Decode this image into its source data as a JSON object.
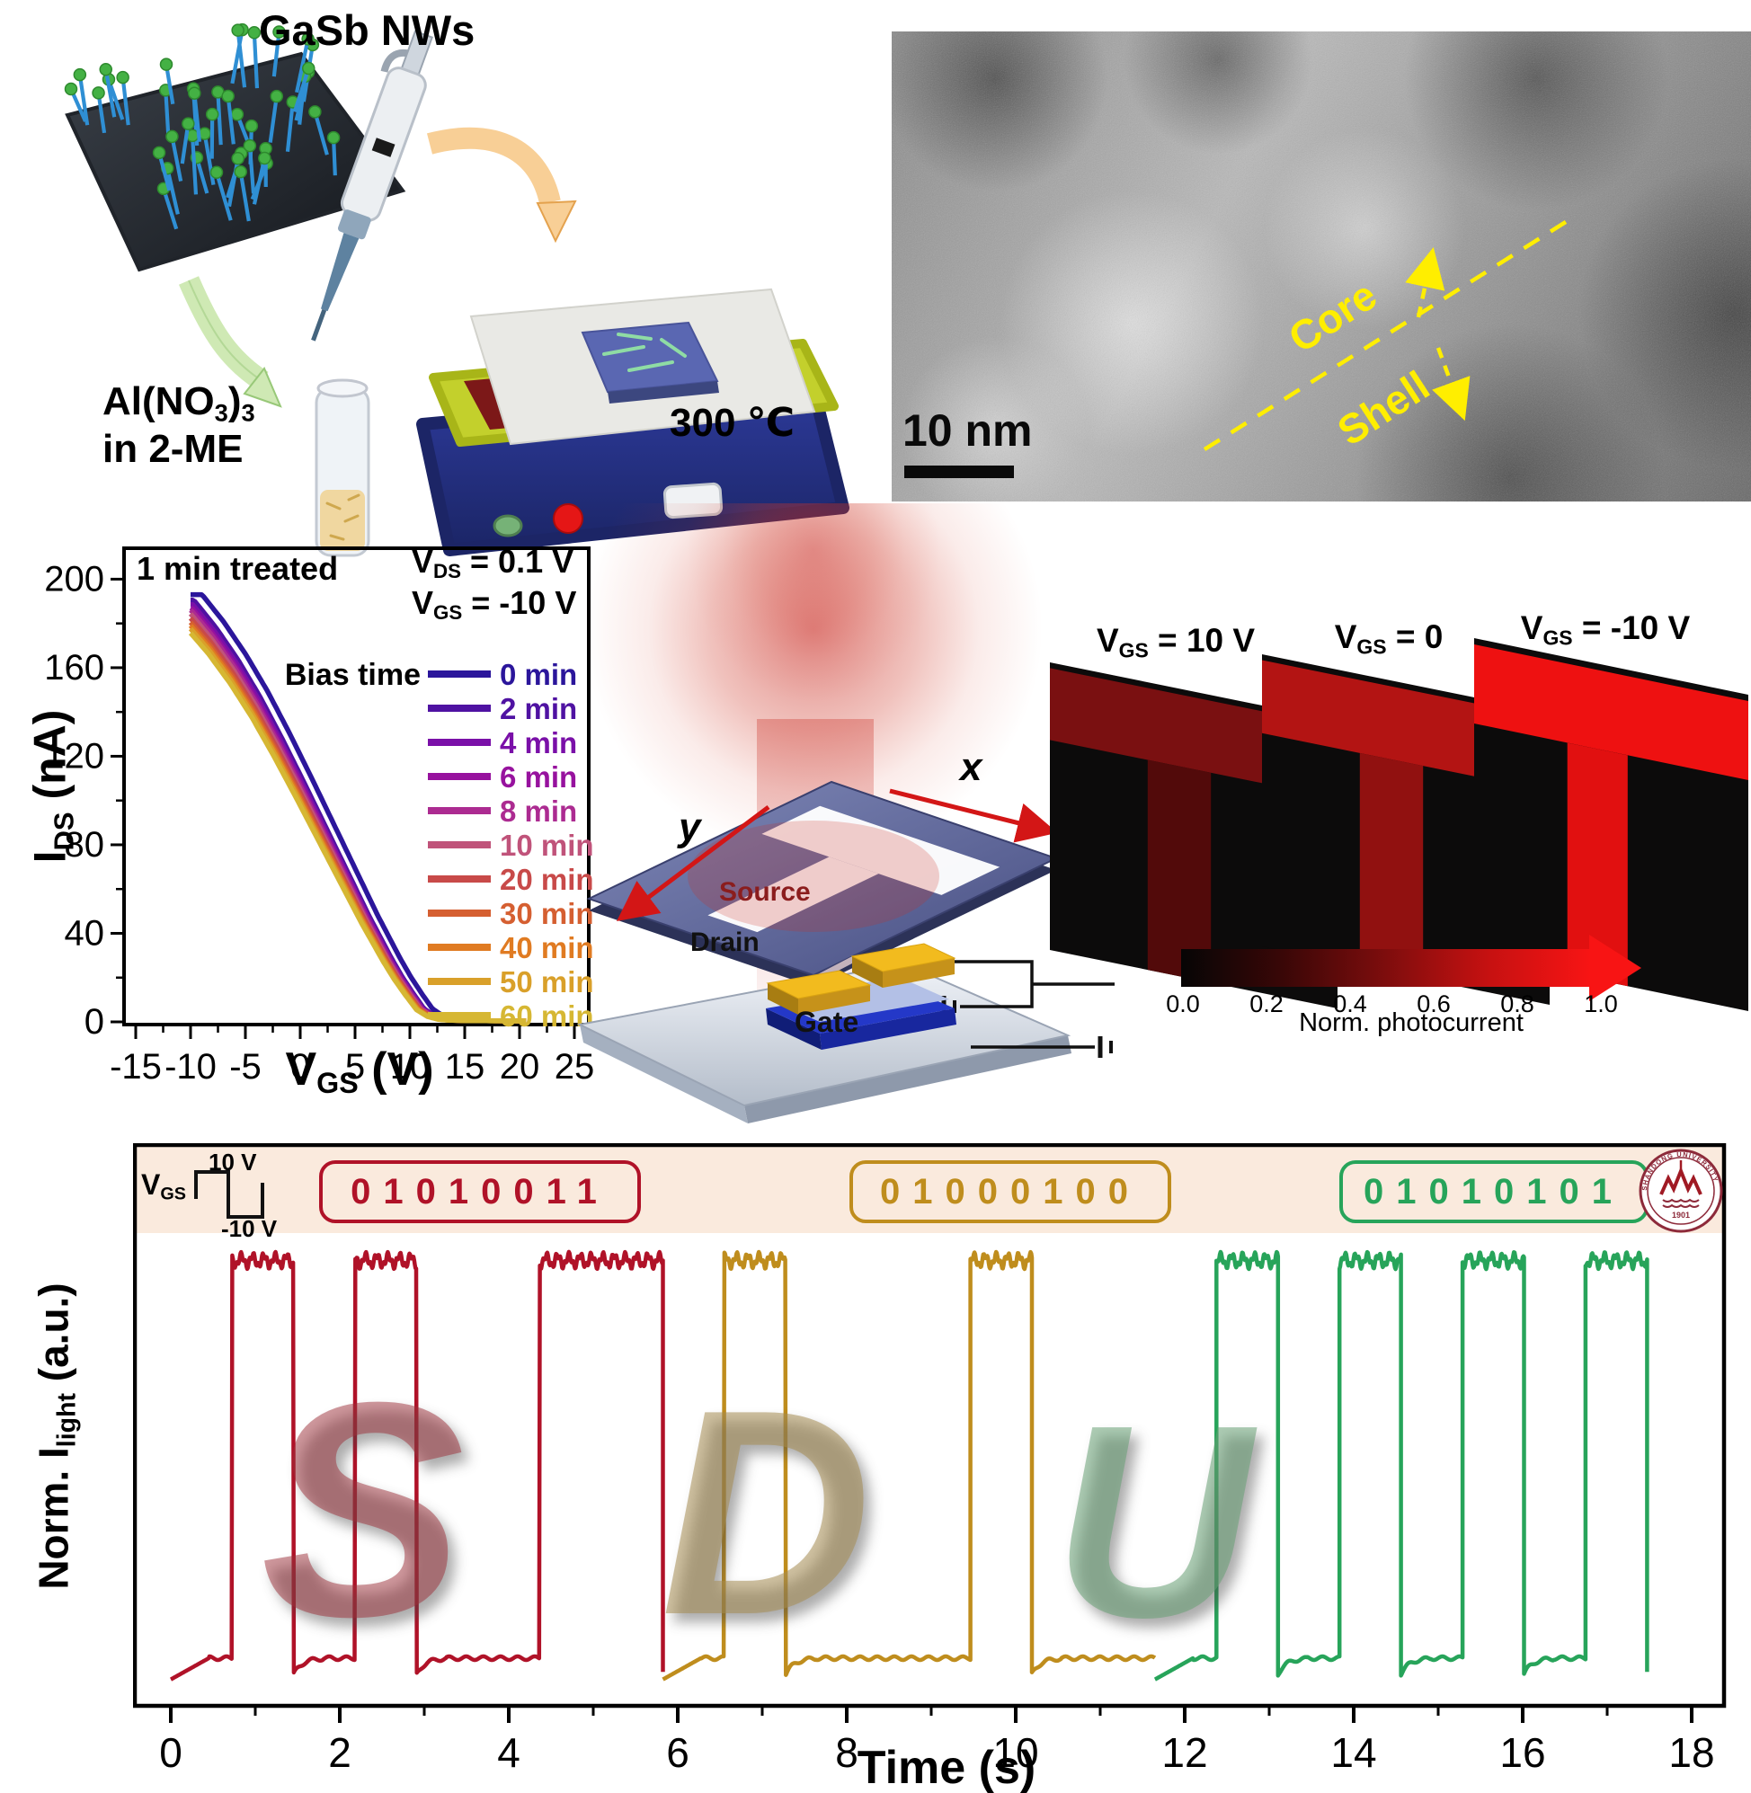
{
  "synthesis": {
    "title": "GaSb NWs",
    "reagent_parts": [
      "Al(NO",
      "3",
      ")",
      "3"
    ],
    "reagent_line2": "in 2-ME",
    "temperature": "300 ℃"
  },
  "tem": {
    "scale_bar": "10 nm",
    "core_label": "Core",
    "shell_label": "Shell"
  },
  "device": {
    "source": "Source",
    "drain": "Drain",
    "gate": "Gate",
    "axis_x": "x",
    "axis_y": "y"
  },
  "logo": {
    "year": "1901",
    "name": "SHANDONG UNIVERSITY"
  },
  "chart_data": [
    {
      "id": "transfer_curves",
      "type": "line",
      "annotation": "1 min treated",
      "conditions": [
        {
          "pre": "V",
          "sub": "DS",
          "post": " = 0.1 V"
        },
        {
          "pre": "V",
          "sub": "GS",
          "post": " = -10 V"
        }
      ],
      "legend_title": "Bias time",
      "legend_position": "right-inside",
      "xlabel": {
        "pre": "V",
        "sub": "GS",
        "post": " (V)"
      },
      "ylabel": {
        "pre": "I",
        "sub": "DS",
        "post": " (nA)"
      },
      "xlim": [
        -16.5,
        26.5
      ],
      "ylim": [
        0,
        214
      ],
      "xticks": [
        -15,
        -10,
        -5,
        0,
        5,
        10,
        15,
        20,
        25
      ],
      "yticks": [
        0,
        40,
        80,
        120,
        160,
        200
      ],
      "grid": false,
      "x_data_range": [
        -10,
        20.6
      ],
      "base_curve": [
        [
          -11.5,
          186
        ],
        [
          -10,
          178
        ],
        [
          -8,
          166.5
        ],
        [
          -6,
          153
        ],
        [
          -4,
          137.5
        ],
        [
          -2,
          120
        ],
        [
          0,
          101.5
        ],
        [
          2,
          82.5
        ],
        [
          4,
          63.5
        ],
        [
          6,
          44.5
        ],
        [
          8,
          27
        ],
        [
          9,
          19
        ],
        [
          10,
          12
        ],
        [
          11,
          5.5
        ],
        [
          12,
          2.4
        ],
        [
          13,
          1.1
        ],
        [
          14,
          0.7
        ],
        [
          16,
          0.5
        ],
        [
          20.6,
          0.4
        ]
      ],
      "series": [
        {
          "name": "0 min",
          "color": "#2b169b",
          "x_shift": 1.05,
          "peak": 193
        },
        {
          "name": "2 min",
          "color": "#4f12a2",
          "x_shift": 0.3,
          "peak": 190.5
        },
        {
          "name": "4 min",
          "color": "#7a10a8",
          "x_shift": 0.2,
          "peak": 188.5
        },
        {
          "name": "6 min",
          "color": "#97129e",
          "x_shift": 0.12,
          "peak": 187
        },
        {
          "name": "8 min",
          "color": "#ac2b91",
          "x_shift": 0.05,
          "peak": 186
        },
        {
          "name": "10 min",
          "color": "#c0537a",
          "x_shift": -0.02,
          "peak": 184.5
        },
        {
          "name": "20 min",
          "color": "#c84a49",
          "x_shift": -0.1,
          "peak": 183
        },
        {
          "name": "30 min",
          "color": "#d55f31",
          "x_shift": -0.17,
          "peak": 181.5
        },
        {
          "name": "40 min",
          "color": "#e07b22",
          "x_shift": -0.25,
          "peak": 180.5
        },
        {
          "name": "50 min",
          "color": "#d9a02a",
          "x_shift": -0.32,
          "peak": 179.5
        },
        {
          "name": "60 min",
          "color": "#d6b733",
          "x_shift": -0.4,
          "peak": 178
        }
      ]
    },
    {
      "id": "photocurrent_maps",
      "type": "heatmap",
      "panels": [
        {
          "gate_label": {
            "pre": "V",
            "sub": "GS",
            "post": " = 10 V"
          },
          "colors": {
            "bg": "#0c0b0b",
            "bar": "#7a1011",
            "stem": "#520a0a"
          },
          "t_norm_bar": 0.45,
          "t_norm_stem": 0.3
        },
        {
          "gate_label": {
            "pre": "V",
            "sub": "GS",
            "post": " = 0"
          },
          "colors": {
            "bg": "#0c0b0b",
            "bar": "#b31413",
            "stem": "#911110"
          },
          "t_norm_bar": 0.7,
          "t_norm_stem": 0.55
        },
        {
          "gate_label": {
            "pre": "V",
            "sub": "GS",
            "post": " = -10 V"
          },
          "colors": {
            "bg": "#0c0b0b",
            "bar": "#ee1111",
            "stem": "#e11010"
          },
          "t_norm_bar": 1.0,
          "t_norm_stem": 0.95
        }
      ],
      "colorbar": {
        "ticks": [
          "0.0",
          "0.2",
          "0.4",
          "0.6",
          "0.8",
          "1.0"
        ],
        "label": "Norm. photocurrent",
        "gradient": [
          "#060505",
          "#3a0707",
          "#7e0d0d",
          "#c61111",
          "#f81414"
        ]
      }
    },
    {
      "id": "binary_optical_communication",
      "type": "line",
      "xlabel": "Time (s)",
      "ylabel": {
        "pre": "Norm. I",
        "sub": "light",
        "post": " (a.u.)"
      },
      "xticks": [
        0,
        2,
        4,
        6,
        8,
        10,
        12,
        14,
        16,
        18
      ],
      "xlim": [
        -0.45,
        18.35
      ],
      "bit_period": 0.728,
      "level_high": 0.93,
      "level_low": 0.055,
      "gate_waveform": {
        "pre": "V",
        "sub": "GS",
        "high": "10 V",
        "low": "-10 V"
      },
      "sections": [
        {
          "letter": "S",
          "code": "01010011",
          "color": "#b01228",
          "t_start": 0,
          "watermark_color": "rgba(158,48,58,0.5)"
        },
        {
          "letter": "D",
          "code": "01000100",
          "color": "#bf8d1d",
          "t_start": 5.824,
          "watermark_color": "rgba(166,140,82,0.55)"
        },
        {
          "letter": "U",
          "code": "01010101",
          "color": "#27a45a",
          "t_start": 11.648,
          "watermark_color": "rgba(104,160,116,0.55)"
        }
      ]
    }
  ]
}
